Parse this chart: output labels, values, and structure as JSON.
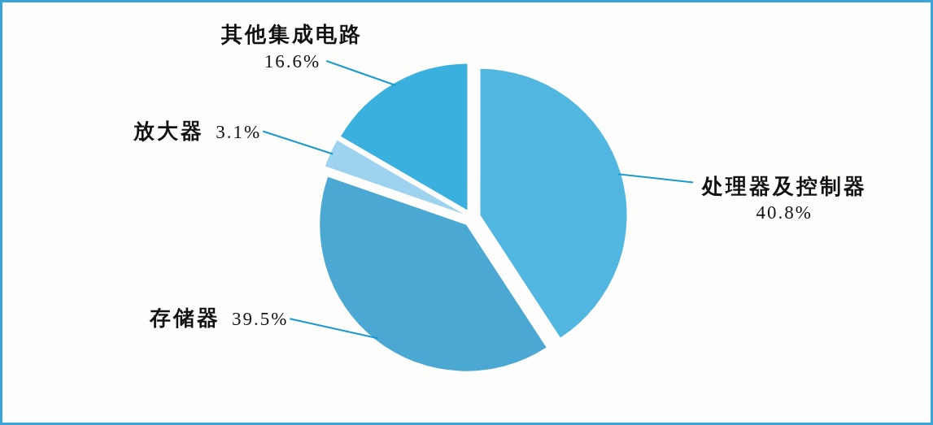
{
  "chart_data": {
    "type": "pie",
    "categories": [
      "处理器及控制器",
      "存储器",
      "放大器",
      "其他集成电路"
    ],
    "values": [
      40.8,
      39.5,
      3.1,
      16.6
    ],
    "colors": [
      "#52b7e0",
      "#4aa8d2",
      "#9dd3ee",
      "#3ab0de"
    ],
    "value_labels": [
      "40.8%",
      "39.5%",
      "3.1%",
      "16.6%"
    ]
  }
}
